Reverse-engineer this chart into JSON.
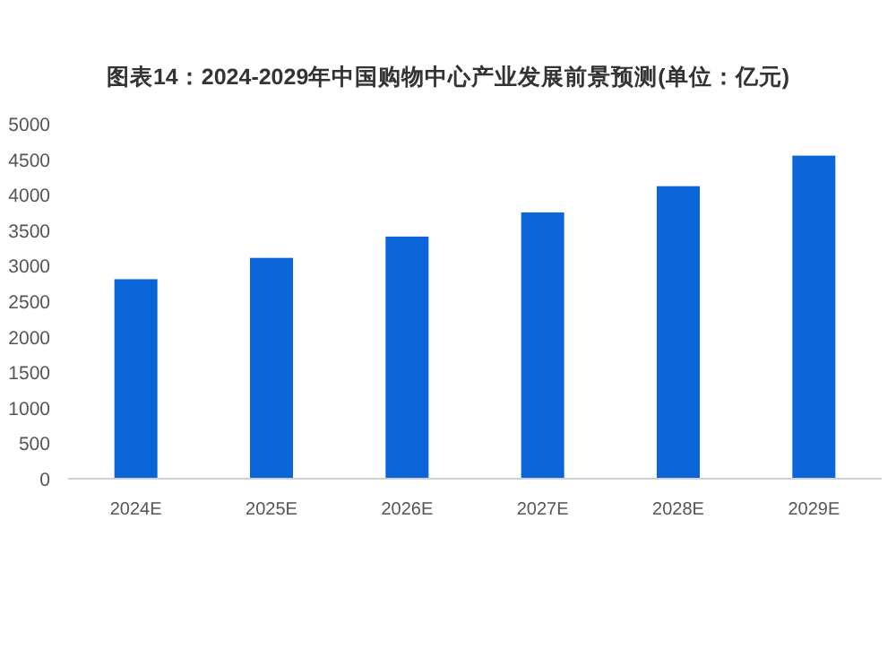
{
  "chart_data": {
    "type": "bar",
    "title": "图表14：2024-2029年中国购物中心产业发展前景预测(单位：亿元)",
    "categories": [
      "2024E",
      "2025E",
      "2026E",
      "2027E",
      "2028E",
      "2029E"
    ],
    "values": [
      2810,
      3110,
      3410,
      3750,
      4120,
      4550
    ],
    "color": "#0a66d8",
    "ylim": [
      0,
      5000
    ],
    "yticks": [
      0,
      500,
      1000,
      1500,
      2000,
      2500,
      3000,
      3500,
      4000,
      4500,
      5000
    ],
    "grid": false
  }
}
